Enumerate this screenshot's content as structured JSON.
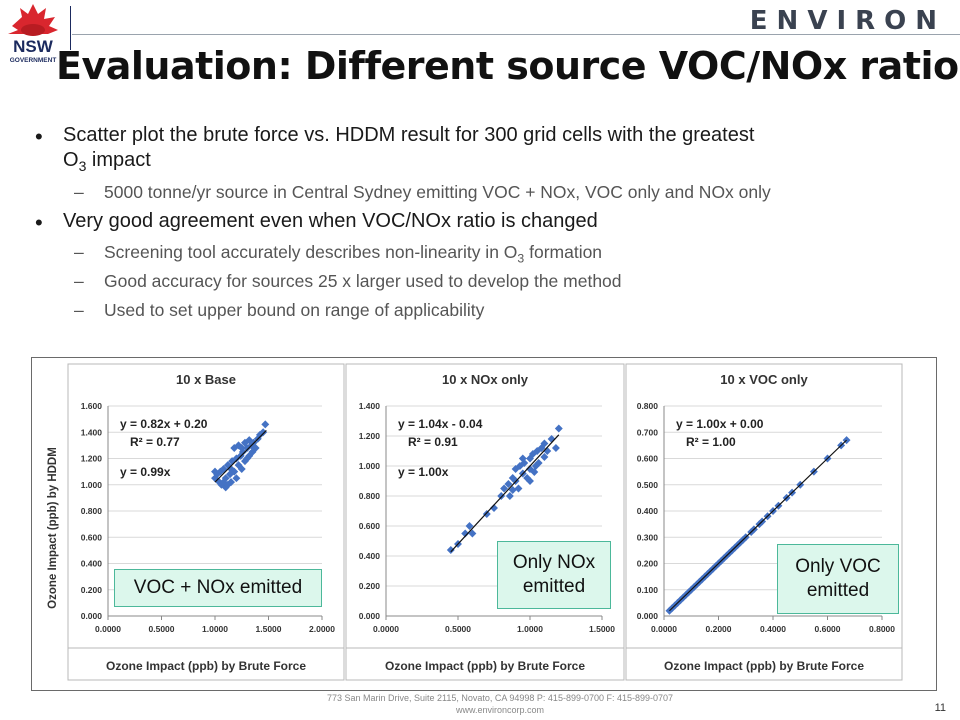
{
  "header": {
    "left_logo_text": "NSW",
    "left_logo_sub": "GOVERNMENT",
    "right_logo_text": "ENVIRON"
  },
  "title": "Evaluation: Different source VOC/NOx  ratios",
  "bullets": [
    {
      "line1": "Scatter plot the brute force vs. HDDM result for 300 grid cells with the greatest",
      "line2_pre": "O",
      "line2_sub": "3",
      "line2_post": " impact",
      "subs": [
        {
          "text": "5000 tonne/yr source in Central Sydney emitting VOC + NOx, VOC only and NOx only"
        }
      ]
    },
    {
      "line1": "Very good agreement even when VOC/NOx ratio is changed",
      "subs": [
        {
          "pre": "Screening tool accurately describes non-linearity in O",
          "sub": "3",
          "post": " formation"
        },
        {
          "text": "Good accuracy for sources 25 x larger used to develop the method"
        },
        {
          "text": "Used to set upper bound on range of applicability"
        }
      ]
    }
  ],
  "shared_ylabel": "Ozone Impact (ppb) by HDDM",
  "chart_data": [
    {
      "type": "scatter",
      "title": "10 x Base",
      "xlabel": "Ozone Impact (ppb) by Brute Force",
      "xlim": [
        0,
        2
      ],
      "ylim": [
        0,
        1.6
      ],
      "xticks": [
        "0.0000",
        "0.5000",
        "1.0000",
        "1.5000",
        "2.0000"
      ],
      "yticks": [
        "0.000",
        "0.200",
        "0.400",
        "0.600",
        "0.800",
        "1.000",
        "1.200",
        "1.400",
        "1.600"
      ],
      "annotations": [
        "y = 0.82x + 0.20",
        "R² = 0.77",
        "y = 0.99x"
      ],
      "callout": [
        "VOC + NOx emitted"
      ],
      "trendline": {
        "slope": 0.82,
        "intercept": 0.2,
        "from": 1.0,
        "to": 1.48
      },
      "points": [
        [
          1.0,
          1.05
        ],
        [
          1.02,
          1.08
        ],
        [
          1.04,
          1.02
        ],
        [
          1.05,
          1.1
        ],
        [
          1.06,
          1.0
        ],
        [
          1.08,
          1.12
        ],
        [
          1.1,
          1.05
        ],
        [
          1.1,
          0.98
        ],
        [
          1.12,
          1.15
        ],
        [
          1.14,
          1.08
        ],
        [
          1.15,
          1.02
        ],
        [
          1.16,
          1.18
        ],
        [
          1.18,
          1.1
        ],
        [
          1.2,
          1.2
        ],
        [
          1.2,
          1.05
        ],
        [
          1.22,
          1.15
        ],
        [
          1.24,
          1.22
        ],
        [
          1.25,
          1.12
        ],
        [
          1.26,
          1.25
        ],
        [
          1.28,
          1.18
        ],
        [
          1.3,
          1.28
        ],
        [
          1.3,
          1.2
        ],
        [
          1.32,
          1.22
        ],
        [
          1.34,
          1.3
        ],
        [
          1.35,
          1.25
        ],
        [
          1.36,
          1.32
        ],
        [
          1.38,
          1.28
        ],
        [
          1.4,
          1.35
        ],
        [
          1.42,
          1.38
        ],
        [
          1.45,
          1.4
        ],
        [
          1.47,
          1.46
        ],
        [
          1.12,
          1.0
        ],
        [
          1.18,
          1.28
        ],
        [
          1.22,
          1.3
        ],
        [
          1.28,
          1.32
        ],
        [
          1.0,
          1.1
        ],
        [
          1.08,
          1.02
        ],
        [
          1.15,
          1.12
        ],
        [
          1.25,
          1.28
        ],
        [
          1.32,
          1.34
        ]
      ]
    },
    {
      "type": "scatter",
      "title": "10 x NOx only",
      "xlabel": "Ozone Impact (ppb) by Brute Force",
      "xlim": [
        0,
        1.5
      ],
      "ylim": [
        0,
        1.4
      ],
      "xticks": [
        "0.0000",
        "0.5000",
        "1.0000",
        "1.5000"
      ],
      "yticks": [
        "0.000",
        "0.200",
        "0.400",
        "0.600",
        "0.800",
        "1.000",
        "1.200",
        "1.400"
      ],
      "annotations": [
        "y = 1.04x - 0.04",
        "R² = 0.91",
        "y = 1.00x"
      ],
      "callout": [
        "Only NOx",
        "emitted"
      ],
      "trendline": {
        "slope": 1.04,
        "intercept": -0.04,
        "from": 0.45,
        "to": 1.2
      },
      "points": [
        [
          0.45,
          0.44
        ],
        [
          0.5,
          0.48
        ],
        [
          0.55,
          0.55
        ],
        [
          0.58,
          0.6
        ],
        [
          0.6,
          0.55
        ],
        [
          0.7,
          0.68
        ],
        [
          0.75,
          0.72
        ],
        [
          0.8,
          0.8
        ],
        [
          0.82,
          0.85
        ],
        [
          0.85,
          0.88
        ],
        [
          0.86,
          0.8
        ],
        [
          0.88,
          0.92
        ],
        [
          0.9,
          0.9
        ],
        [
          0.9,
          0.98
        ],
        [
          0.92,
          0.85
        ],
        [
          0.93,
          1.0
        ],
        [
          0.95,
          0.95
        ],
        [
          0.96,
          1.02
        ],
        [
          0.98,
          0.92
        ],
        [
          1.0,
          1.05
        ],
        [
          1.0,
          0.98
        ],
        [
          1.02,
          1.08
        ],
        [
          1.04,
          1.0
        ],
        [
          1.05,
          1.1
        ],
        [
          1.06,
          1.02
        ],
        [
          1.08,
          1.12
        ],
        [
          1.1,
          1.06
        ],
        [
          1.1,
          1.15
        ],
        [
          1.12,
          1.1
        ],
        [
          1.15,
          1.18
        ],
        [
          1.18,
          1.12
        ],
        [
          1.2,
          1.25
        ],
        [
          0.95,
          1.05
        ],
        [
          1.0,
          0.9
        ],
        [
          0.88,
          0.84
        ],
        [
          1.03,
          0.96
        ]
      ]
    },
    {
      "type": "scatter",
      "title": "10 x VOC only",
      "xlabel": "Ozone Impact (ppb) by Brute Force",
      "xlim": [
        0,
        0.8
      ],
      "ylim": [
        0,
        0.8
      ],
      "xticks": [
        "0.0000",
        "0.2000",
        "0.4000",
        "0.6000",
        "0.8000"
      ],
      "yticks": [
        "0.000",
        "0.100",
        "0.200",
        "0.300",
        "0.400",
        "0.500",
        "0.600",
        "0.700",
        "0.800"
      ],
      "annotations": [
        "y = 1.00x + 0.00",
        "R² = 1.00"
      ],
      "callout": [
        "Only VOC",
        "emitted"
      ],
      "trendline": {
        "slope": 1.0,
        "intercept": 0.0,
        "from": 0.02,
        "to": 0.67
      },
      "points": [
        [
          0.02,
          0.02
        ],
        [
          0.03,
          0.03
        ],
        [
          0.04,
          0.04
        ],
        [
          0.05,
          0.05
        ],
        [
          0.06,
          0.06
        ],
        [
          0.07,
          0.07
        ],
        [
          0.08,
          0.08
        ],
        [
          0.09,
          0.09
        ],
        [
          0.1,
          0.1
        ],
        [
          0.11,
          0.11
        ],
        [
          0.12,
          0.12
        ],
        [
          0.13,
          0.13
        ],
        [
          0.14,
          0.14
        ],
        [
          0.15,
          0.15
        ],
        [
          0.16,
          0.16
        ],
        [
          0.17,
          0.17
        ],
        [
          0.18,
          0.18
        ],
        [
          0.19,
          0.19
        ],
        [
          0.2,
          0.2
        ],
        [
          0.21,
          0.21
        ],
        [
          0.22,
          0.22
        ],
        [
          0.23,
          0.23
        ],
        [
          0.24,
          0.24
        ],
        [
          0.25,
          0.25
        ],
        [
          0.26,
          0.26
        ],
        [
          0.27,
          0.27
        ],
        [
          0.28,
          0.28
        ],
        [
          0.29,
          0.29
        ],
        [
          0.3,
          0.3
        ],
        [
          0.32,
          0.32
        ],
        [
          0.33,
          0.33
        ],
        [
          0.35,
          0.35
        ],
        [
          0.36,
          0.36
        ],
        [
          0.38,
          0.38
        ],
        [
          0.4,
          0.4
        ],
        [
          0.42,
          0.42
        ],
        [
          0.45,
          0.45
        ],
        [
          0.47,
          0.47
        ],
        [
          0.5,
          0.5
        ],
        [
          0.55,
          0.55
        ],
        [
          0.6,
          0.6
        ],
        [
          0.65,
          0.65
        ],
        [
          0.67,
          0.67
        ]
      ]
    }
  ],
  "footer": {
    "line1": "773 San Marin Drive, Suite 2115, Novato, CA 94998 P: 415-899-0700 F: 415-899-0707",
    "line2": "www.environcorp.com"
  },
  "page_number": "11",
  "colors": {
    "marker": "#4472c4",
    "callout_bg": "#dcf7ec",
    "callout_border": "#4cb89a"
  },
  "icons": {
    "nsw_logo": "waratah-flower-icon"
  }
}
